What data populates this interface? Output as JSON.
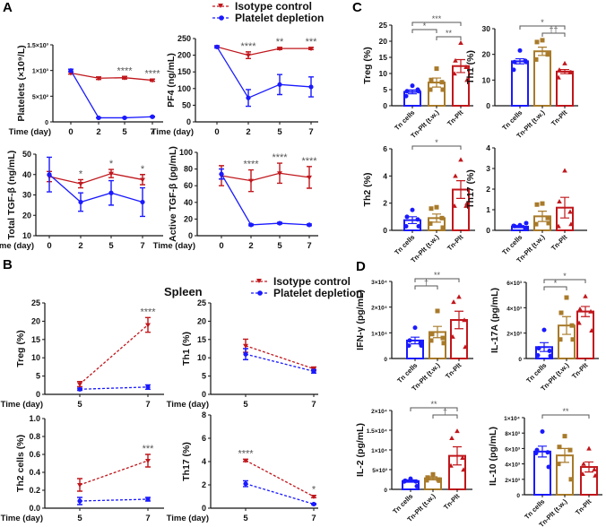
{
  "panels": [
    "A",
    "B",
    "C",
    "D"
  ],
  "colors": {
    "isotype": "#c0171c",
    "depletion": "#1a1aff",
    "tn_cells": "#1a1aff",
    "tn_plt_tw": "#a87a2a",
    "tn_plt": "#c0171c",
    "sig": "#555555"
  },
  "legend": {
    "isotype": "Isotype control",
    "depletion": "Platelet depletion"
  },
  "spleen_title": "Spleen",
  "xlabel": "Time (day)",
  "chart_data": [
    {
      "id": "platelets",
      "type": "line",
      "panel": "A",
      "ylabel": "Platelets (×10⁹/L)",
      "x": [
        "0",
        "2",
        "5",
        "7"
      ],
      "ylim": [
        0,
        1500
      ],
      "yticks": [
        0,
        500,
        1000,
        1500
      ],
      "ytick_labels": [
        "0",
        "5×10²",
        "1×10³",
        "1.5×10³"
      ],
      "series": [
        {
          "name": "Isotype control",
          "values": [
            950,
            850,
            860,
            810
          ],
          "err": [
            20,
            25,
            25,
            20
          ]
        },
        {
          "name": "Platelet depletion",
          "values": [
            1000,
            80,
            80,
            100
          ],
          "err": [
            25,
            5,
            5,
            8
          ]
        }
      ],
      "sig": [
        "",
        "",
        "****",
        "****"
      ]
    },
    {
      "id": "pf4",
      "type": "line",
      "panel": "A",
      "ylabel": "PF4 (ng/mL)",
      "x": [
        "0",
        "2",
        "5",
        "7"
      ],
      "ylim": [
        0,
        250
      ],
      "yticks": [
        0,
        50,
        100,
        150,
        200,
        250
      ],
      "ytick_labels": [
        "0",
        "50",
        "100",
        "150",
        "200",
        "250"
      ],
      "series": [
        {
          "name": "Isotype control",
          "values": [
            225,
            200,
            220,
            220
          ],
          "err": [
            3,
            10,
            3,
            3
          ]
        },
        {
          "name": "Platelet depletion",
          "values": [
            225,
            72,
            112,
            105
          ],
          "err": [
            3,
            25,
            30,
            30
          ]
        }
      ],
      "sig": [
        "",
        "****",
        "**",
        "***"
      ]
    },
    {
      "id": "total_tgf",
      "type": "line",
      "panel": "A",
      "ylabel": "Total TGF-β (ng/mL)",
      "x": [
        "0",
        "2",
        "5",
        "7"
      ],
      "ylim": [
        10,
        50
      ],
      "yticks": [
        10,
        20,
        30,
        40,
        50
      ],
      "ytick_labels": [
        "10",
        "20",
        "30",
        "40",
        "50"
      ],
      "series": [
        {
          "name": "Isotype control",
          "values": [
            39,
            35.5,
            40.5,
            37.5
          ],
          "err": [
            2.5,
            2,
            2,
            2.5
          ]
        },
        {
          "name": "Platelet depletion",
          "values": [
            40,
            26.5,
            31,
            26.5
          ],
          "err": [
            8.5,
            4.5,
            6,
            7
          ]
        }
      ],
      "sig": [
        "",
        "*",
        "*",
        "*"
      ]
    },
    {
      "id": "active_tgf",
      "type": "line",
      "panel": "A",
      "ylabel": "Active TGF-β (pg/mL)",
      "x": [
        "0",
        "2",
        "5",
        "7"
      ],
      "ylim": [
        0,
        100
      ],
      "yticks": [
        0,
        20,
        40,
        60,
        80,
        100
      ],
      "ytick_labels": [
        "0",
        "20",
        "40",
        "60",
        "80",
        "100"
      ],
      "series": [
        {
          "name": "Isotype control",
          "values": [
            72,
            66,
            75,
            70
          ],
          "err": [
            12,
            13,
            12,
            13
          ]
        },
        {
          "name": "Platelet depletion",
          "values": [
            74,
            13,
            15,
            13
          ],
          "err": [
            6,
            1,
            1,
            1
          ]
        }
      ],
      "sig": [
        "",
        "****",
        "****",
        "****"
      ]
    },
    {
      "id": "b_treg",
      "type": "line",
      "panel": "B",
      "dashed": true,
      "ylabel": "Treg (%)",
      "x": [
        "5",
        "7"
      ],
      "ylim": [
        0,
        25
      ],
      "yticks": [
        0,
        5,
        10,
        15,
        20,
        25
      ],
      "ytick_labels": [
        "0",
        "5",
        "10",
        "15",
        "20",
        "25"
      ],
      "series": [
        {
          "name": "Isotype control",
          "values": [
            2.8,
            19
          ],
          "err": [
            0.7,
            2
          ]
        },
        {
          "name": "Platelet depletion",
          "values": [
            1.4,
            2
          ],
          "err": [
            0.3,
            0.6
          ]
        }
      ],
      "sig": [
        "",
        "****"
      ]
    },
    {
      "id": "b_th1",
      "type": "line",
      "panel": "B",
      "dashed": true,
      "ylabel": "Th1 (%)",
      "x": [
        "5",
        "7"
      ],
      "ylim": [
        0,
        25
      ],
      "yticks": [
        0,
        5,
        10,
        15,
        20,
        25
      ],
      "ytick_labels": [
        "0",
        "5",
        "10",
        "15",
        "20",
        "25"
      ],
      "series": [
        {
          "name": "Isotype control",
          "values": [
            13.3,
            7
          ],
          "err": [
            1.8,
            0.5
          ]
        },
        {
          "name": "Platelet depletion",
          "values": [
            11,
            6.3
          ],
          "err": [
            1.5,
            0.5
          ]
        }
      ],
      "sig": [
        "",
        ""
      ]
    },
    {
      "id": "b_th2",
      "type": "line",
      "panel": "B",
      "dashed": true,
      "ylabel": "Th2 cells (%)",
      "x": [
        "5",
        "7"
      ],
      "ylim": [
        0,
        1
      ],
      "yticks": [
        0,
        0.2,
        0.4,
        0.6,
        0.8,
        1
      ],
      "ytick_labels": [
        "0.0",
        "0.2",
        "0.4",
        "0.6",
        "0.8",
        "1.0"
      ],
      "series": [
        {
          "name": "Isotype control",
          "values": [
            0.26,
            0.53
          ],
          "err": [
            0.07,
            0.07
          ]
        },
        {
          "name": "Platelet depletion",
          "values": [
            0.08,
            0.1
          ],
          "err": [
            0.04,
            0.02
          ]
        }
      ],
      "sig": [
        "",
        "***"
      ]
    },
    {
      "id": "b_th17",
      "type": "line",
      "panel": "B",
      "dashed": true,
      "ylabel": "Th17 (%)",
      "x": [
        "5",
        "7"
      ],
      "ylim": [
        0,
        8
      ],
      "yticks": [
        0,
        2,
        4,
        6,
        8
      ],
      "ytick_labels": [
        "0",
        "2",
        "4",
        "6",
        "8"
      ],
      "series": [
        {
          "name": "Isotype control",
          "values": [
            4.1,
            1
          ],
          "err": [
            0.1,
            0.1
          ]
        },
        {
          "name": "Platelet depletion",
          "values": [
            2.1,
            0.35
          ],
          "err": [
            0.25,
            0.05
          ]
        }
      ],
      "sig": [
        "****",
        "*"
      ]
    },
    {
      "id": "c_treg",
      "type": "bar",
      "panel": "C",
      "ylabel": "Treg (%)",
      "categories": [
        "Tn cells",
        "Tn-Plt (t.w.)",
        "Tn-Plt"
      ],
      "ylim": [
        0,
        25
      ],
      "yticks": [
        0,
        5,
        10,
        15,
        20,
        25
      ],
      "ytick_labels": [
        "0",
        "5",
        "10",
        "15",
        "20",
        "25"
      ],
      "values": [
        4.3,
        7.2,
        12.3
      ],
      "sem": [
        0.6,
        1.4,
        2
      ],
      "points": [
        [
          6.2,
          4.5,
          5,
          3,
          4.5
        ],
        [
          11.5,
          8,
          7.3,
          5,
          5
        ],
        [
          19.5,
          14,
          12,
          10,
          8
        ]
      ],
      "brackets": [
        [
          0,
          2,
          "***"
        ],
        [
          0,
          1,
          "*"
        ],
        [
          1,
          2,
          "**"
        ]
      ]
    },
    {
      "id": "c_th1",
      "type": "bar",
      "panel": "C",
      "ylabel": "Th1 (%)",
      "categories": [
        "Tn cells",
        "Tn-Plt (t.w.)",
        "Tn-Plt"
      ],
      "ylim": [
        0,
        30
      ],
      "yticks": [
        0,
        10,
        20,
        30
      ],
      "ytick_labels": [
        "0",
        "10",
        "20",
        "30"
      ],
      "values": [
        17.3,
        21.2,
        13.3
      ],
      "sem": [
        1,
        1.6,
        0.8
      ],
      "points": [
        [
          21.5,
          17,
          17.5,
          14,
          17
        ],
        [
          25.5,
          24.8,
          20,
          18,
          20
        ],
        [
          16.5,
          14,
          13,
          11,
          13
        ]
      ],
      "brackets": [
        [
          0,
          2,
          "*"
        ],
        [
          1,
          2,
          "††"
        ]
      ]
    },
    {
      "id": "c_th2",
      "type": "bar",
      "panel": "C",
      "ylabel": "Th2 (%)",
      "categories": [
        "Tn cells",
        "Tn-Plt (t.w.)",
        "Tn-Plt"
      ],
      "ylim": [
        0,
        6
      ],
      "yticks": [
        0,
        2,
        4,
        6
      ],
      "ytick_labels": [
        "0",
        "2",
        "4",
        "6"
      ],
      "values": [
        0.75,
        0.9,
        3
      ],
      "sem": [
        0.25,
        0.3,
        0.65
      ],
      "points": [
        [
          1.5,
          1,
          0.8,
          0.3,
          0.3
        ],
        [
          1.7,
          1.6,
          0.9,
          0.5,
          0.2
        ],
        [
          5.2,
          4,
          1.8,
          1.8,
          2
        ]
      ],
      "brackets": [
        [
          0,
          2,
          "*"
        ]
      ]
    },
    {
      "id": "c_th17",
      "type": "bar",
      "panel": "C",
      "ylabel": "Th17 (%)",
      "categories": [
        "Tn cells",
        "Tn-Plt (t.w.)",
        "Tn-Plt"
      ],
      "ylim": [
        0,
        4
      ],
      "yticks": [
        0,
        1,
        2,
        3,
        4
      ],
      "ytick_labels": [
        "0",
        "1",
        "2",
        "3",
        "4"
      ],
      "values": [
        0.18,
        0.68,
        1.1
      ],
      "sem": [
        0.05,
        0.25,
        0.5
      ],
      "points": [
        [
          0.25,
          0.2,
          0.1,
          0.22,
          0.35
        ],
        [
          1.3,
          1.25,
          0.6,
          0.3,
          0.35
        ],
        [
          2.9,
          1.4,
          0.9,
          0.2,
          0.3
        ]
      ],
      "brackets": []
    },
    {
      "id": "d_ifng",
      "type": "bar",
      "panel": "D",
      "ylabel": "IFN-γ (pg/mL)",
      "categories": [
        "Tn cells",
        "Tn-Plt (t.w.)",
        "Tn-Plt"
      ],
      "ylim": [
        0,
        30000
      ],
      "yticks": [
        0,
        10000,
        20000,
        30000
      ],
      "ytick_labels": [
        "0",
        "1×10⁴",
        "2×10⁴",
        "3×10⁴"
      ],
      "values": [
        7000,
        10300,
        15000
      ],
      "sem": [
        1300,
        2200,
        3400
      ],
      "points": [
        [
          12000,
          7000,
          6000,
          5000,
          5000
        ],
        [
          18500,
          9500,
          8000,
          7000,
          6000
        ],
        [
          24000,
          22000,
          15000,
          8500,
          4500
        ]
      ],
      "brackets": [
        [
          0,
          2,
          "**"
        ],
        [
          0,
          1,
          "†"
        ]
      ]
    },
    {
      "id": "d_il17a",
      "type": "bar",
      "panel": "D",
      "ylabel": "IL-17A (pg/mL)",
      "categories": [
        "Tn cells",
        "Tn-Plt (t.w.)",
        "Tn-Plt"
      ],
      "ylim": [
        0,
        6000
      ],
      "yticks": [
        0,
        2000,
        4000,
        6000
      ],
      "ytick_labels": [
        "0",
        "2×10³",
        "4×10³",
        "6×10³"
      ],
      "values": [
        900,
        2600,
        3700
      ],
      "sem": [
        350,
        700,
        400
      ],
      "points": [
        [
          2250,
          800,
          600,
          250,
          200
        ],
        [
          4800,
          3600,
          2600,
          1500,
          1500
        ],
        [
          4900,
          3900,
          3700,
          2800,
          2200
        ]
      ],
      "brackets": [
        [
          0,
          2,
          "*"
        ],
        [
          0,
          1,
          "*"
        ]
      ]
    },
    {
      "id": "d_il2",
      "type": "bar",
      "panel": "D",
      "ylabel": "IL-2 (pg/mL)",
      "categories": [
        "Tn cells",
        "Tn-Plt (t.w.)",
        "Tn-Plt"
      ],
      "ylim": [
        0,
        20000
      ],
      "yticks": [
        0,
        5000,
        10000,
        15000,
        20000
      ],
      "ytick_labels": [
        "0",
        "5×10³",
        "1×10⁴",
        "1.5×10⁴",
        "2×10⁴"
      ],
      "values": [
        2100,
        2800,
        8500
      ],
      "sem": [
        300,
        400,
        2300
      ],
      "points": [
        [
          2700,
          2200,
          2000,
          2000,
          800
        ],
        [
          3800,
          3000,
          2500,
          2300,
          2200
        ],
        [
          14800,
          13000,
          8000,
          6000,
          5000
        ]
      ],
      "brackets": [
        [
          0,
          2,
          "**"
        ],
        [
          1,
          2,
          "†"
        ]
      ]
    },
    {
      "id": "d_il10",
      "type": "bar",
      "panel": "D",
      "ylabel": "IL-10 (pg/mL)",
      "categories": [
        "Tn cells",
        "Tn-Plt (t.w.)",
        "Tn-Plt"
      ],
      "ylim": [
        0,
        10000
      ],
      "yticks": [
        0,
        2000,
        4000,
        6000,
        8000,
        10000
      ],
      "ytick_labels": [
        "0",
        "2×10³",
        "4×10³",
        "6×10³",
        "8×10³",
        "1×10⁴"
      ],
      "values": [
        5600,
        5100,
        3600
      ],
      "sem": [
        700,
        900,
        650
      ],
      "points": [
        [
          8200,
          5800,
          5500,
          5400,
          3600
        ],
        [
          7600,
          6200,
          5800,
          4000,
          2000
        ],
        [
          6000,
          4000,
          3300,
          2700,
          2500
        ]
      ],
      "brackets": [
        [
          0,
          2,
          "**"
        ]
      ]
    }
  ]
}
